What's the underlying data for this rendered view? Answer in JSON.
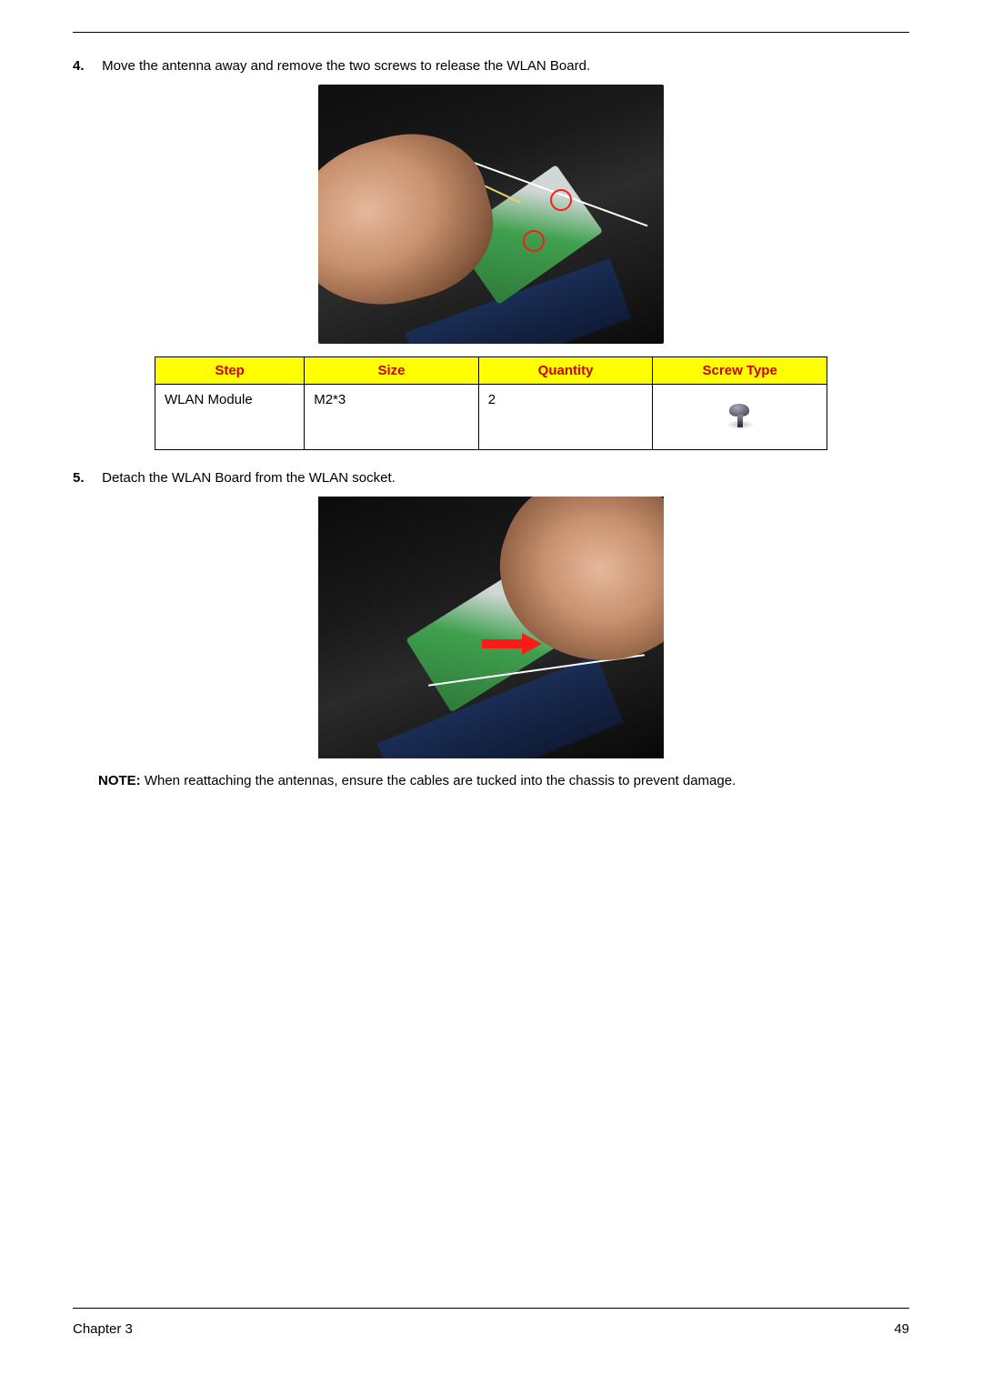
{
  "steps": {
    "s4": {
      "num": "4.",
      "text": "Move the antenna away and remove the two screws to release the WLAN Board."
    },
    "s5": {
      "num": "5.",
      "text": "Detach the WLAN Board from the WLAN socket."
    }
  },
  "table": {
    "headers": {
      "step": "Step",
      "size": "Size",
      "quantity": "Quantity",
      "screw_type": "Screw Type"
    },
    "header_bg": "#ffff00",
    "header_color": "#cc0000",
    "rows": [
      {
        "step": "WLAN Module",
        "size": "M2*3",
        "quantity": "2"
      }
    ]
  },
  "note": {
    "label": "NOTE:",
    "text": " When reattaching the antennas, ensure the cables are tucked into the chassis to prevent damage."
  },
  "footer": {
    "chapter": "Chapter 3",
    "page": "49"
  },
  "colors": {
    "text": "#000000",
    "background": "#ffffff",
    "arrow": "#ff1a1a",
    "circle": "#ff1a1a"
  },
  "typography": {
    "body_fontsize_pt": 11,
    "header_fontsize_pt": 11,
    "font_family": "Arial"
  }
}
